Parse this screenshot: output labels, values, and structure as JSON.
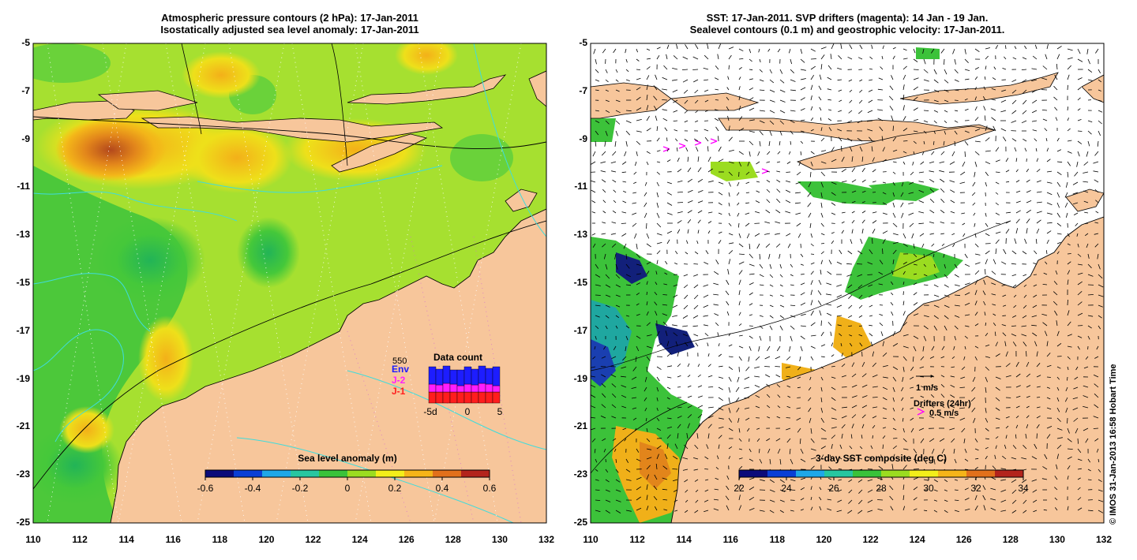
{
  "left_panel": {
    "title_line1": "Atmospheric pressure contours (2 hPa): 17-Jan-2011",
    "title_line2": "Isostatically adjusted sea level anomaly: 17-Jan-2011",
    "colorbar": {
      "label": "Sea level anomaly (m)",
      "ticks": [
        "-0.6",
        "-0.4",
        "-0.2",
        "0",
        "0.2",
        "0.4",
        "0.6"
      ],
      "colors": [
        "#0b0b7a",
        "#0a3fd6",
        "#1fa7e8",
        "#27c6a0",
        "#39c23a",
        "#9bdc20",
        "#f3ee1a",
        "#f5b419",
        "#e2701b",
        "#b3241c"
      ]
    },
    "data_count": {
      "title": "Data count",
      "max_label": "550",
      "legend": [
        {
          "label": "Env",
          "color": "#1d1dff"
        },
        {
          "label": "J-2",
          "color": "#ff1dff"
        },
        {
          "label": "J-1",
          "color": "#ff1d1d"
        }
      ],
      "xticks": [
        "-5d",
        "0",
        "5"
      ]
    }
  },
  "right_panel": {
    "title_line1": "SST: 17-Jan-2011. SVP drifters (magenta): 14 Jan - 19 Jan.",
    "title_line2": "Sealevel contours (0.1 m) and geostrophic velocity: 17-Jan-2011.",
    "velocity_scale_label": "1 m/s",
    "drifters_label": "Drifters (24hr)",
    "drifter_speed_label": "0.5 m/s",
    "colorbar": {
      "label": "3-day SST composite (deg C)",
      "ticks": [
        "22",
        "24",
        "26",
        "28",
        "30",
        "32",
        "34"
      ],
      "colors": [
        "#0b0b7a",
        "#0a3fd6",
        "#1fa7e8",
        "#27c6a0",
        "#39c23a",
        "#9bdc20",
        "#f3ee1a",
        "#f5b419",
        "#e2701b",
        "#b3241c"
      ]
    }
  },
  "axes": {
    "lat_labels": [
      "-5",
      "-7",
      "-9",
      "-11",
      "-13",
      "-15",
      "-17",
      "-19",
      "-21",
      "-23",
      "-25"
    ],
    "lon_labels": [
      "110",
      "112",
      "114",
      "116",
      "118",
      "120",
      "122",
      "124",
      "126",
      "128",
      "130",
      "132"
    ]
  },
  "colors": {
    "land": "#f7c69b",
    "ocean_green": "#a6e030",
    "contour_cyan": "#3fdcdc",
    "drifter": "#ff00ff"
  },
  "credit": "© IMOS 31-Jan-2013 16:58 Hobart Time"
}
